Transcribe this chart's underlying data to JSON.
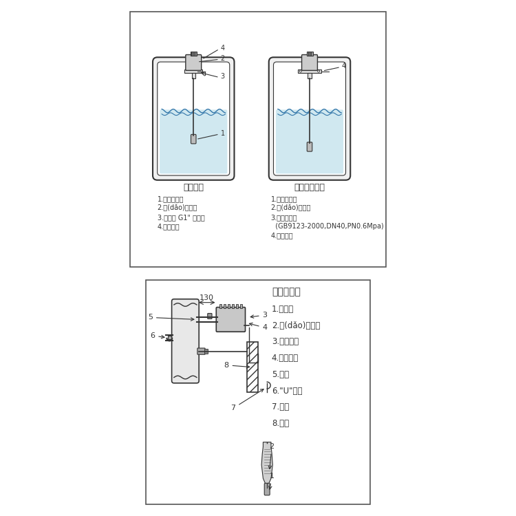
{
  "bg_color": "#f5f5f5",
  "line_color": "#333333",
  "fill_color": "#cccccc",
  "water_color": "#aaccee",
  "top_panel": {
    "title1": "螺紋安裝",
    "title2": "法蘭連接安裝",
    "labels1": [
      "1.測量傳感器",
      "2.導(dǎo)氣電纜",
      "3.連接件 G1\" 外螺紋",
      "4.電氣殼體"
    ],
    "labels2": [
      "1.測量傳感器",
      "2.導(dǎo)氣電纜",
      "3.連接件法蘭",
      "  (GB9123-2000,DN40,PN0.6Mpa)",
      "4.電氣殼體"
    ]
  },
  "bottom_panel": {
    "title": "分體式安裝",
    "labels": [
      "1.傳感器",
      "2.導(dǎo)氣電纜",
      "3.電氣殼體",
      "4.安裝支架",
      "5.管道",
      "6.\"U\"型卡",
      "7.掛鉤",
      "8.墻體"
    ],
    "dim_label": "130"
  }
}
